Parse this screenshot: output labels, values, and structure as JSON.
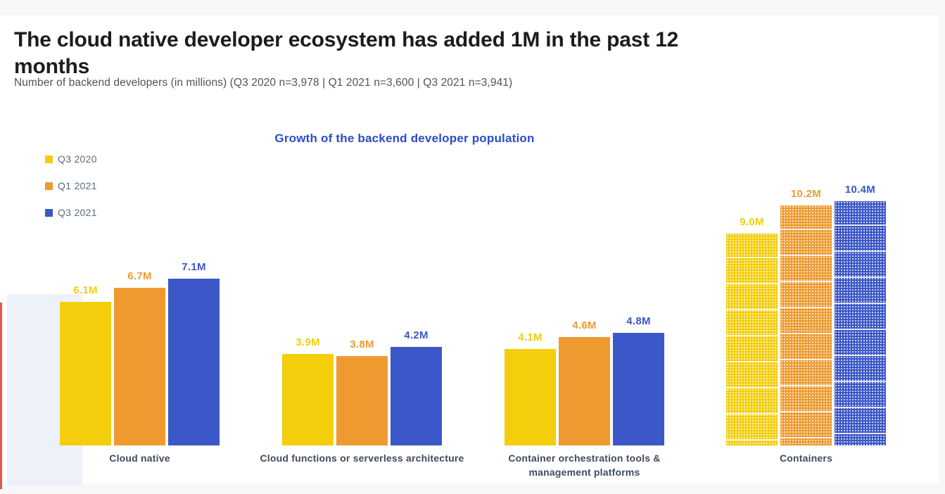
{
  "page": {
    "title_line1": "The cloud native developer ecosystem has added 1M in the past 12",
    "title_line2": "months",
    "subtitle": "Number of backend developers (in millions) (Q3 2020 n=3,978 | Q1 2021 n=3,600 | Q3 2021 n=3,941)"
  },
  "chart_data": {
    "type": "bar",
    "title": "Growth of the backend developer population",
    "categories": [
      "Cloud native",
      "Cloud functions or serverless architecture",
      "Container orchestration tools & management platforms",
      "Containers"
    ],
    "series": [
      {
        "name": "Q3 2020",
        "color": "#F4CE0D",
        "values": [
          6.1,
          3.9,
          4.1,
          9.0
        ]
      },
      {
        "name": "Q1 2021",
        "color": "#EF9A30",
        "values": [
          6.7,
          3.8,
          4.6,
          10.2
        ]
      },
      {
        "name": "Q3 2021",
        "color": "#3B57C8",
        "values": [
          7.1,
          4.2,
          4.8,
          10.4
        ]
      }
    ],
    "value_suffix": "M",
    "ylim": [
      0,
      10.4
    ],
    "grid": false,
    "legend_position": "top-left",
    "patterned_category": "Containers",
    "ylabel": "",
    "xlabel": ""
  },
  "colors": {
    "page_background": "#f7f7f8",
    "card_background": "#ffffff",
    "chart_title": "#2b4bcb",
    "main_title": "#1b1c1e",
    "subtitle": "#505356",
    "legend_text": "#5b6b7b",
    "category_label": "#3e4b5a",
    "decor_rect": "#edf1fa",
    "decor_red_line": "#e4564e"
  }
}
